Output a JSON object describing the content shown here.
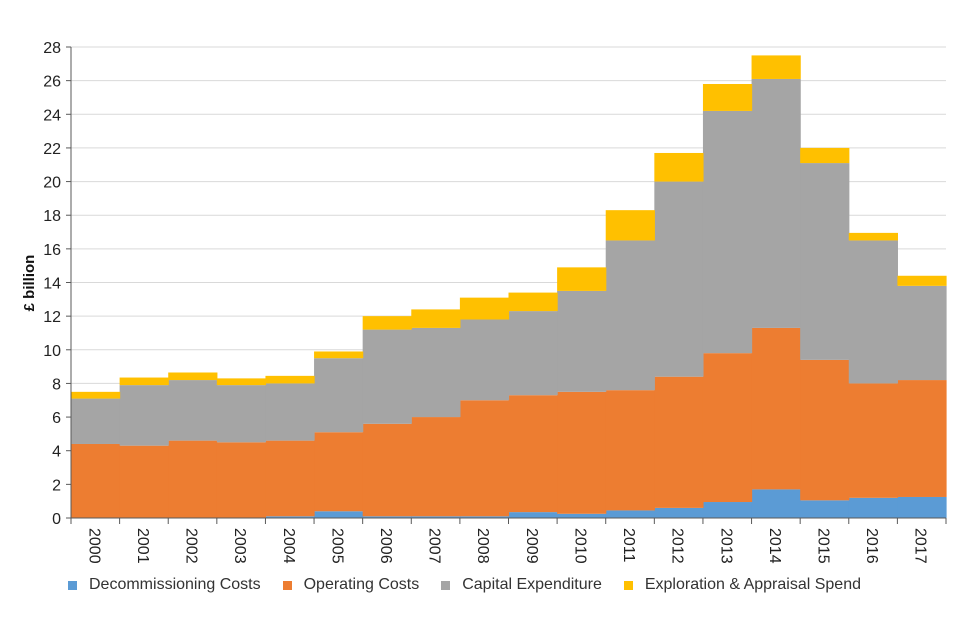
{
  "chart_data": {
    "type": "area",
    "stacked": true,
    "step": true,
    "title": "",
    "xlabel": "",
    "ylabel": "£ billion",
    "ylim": [
      0,
      28
    ],
    "yticks": [
      0,
      2,
      4,
      6,
      8,
      10,
      12,
      14,
      16,
      18,
      20,
      22,
      24,
      26,
      28
    ],
    "grid": true,
    "legend_position": "bottom",
    "categories": [
      "2000",
      "2001",
      "2002",
      "2003",
      "2004",
      "2005",
      "2006",
      "2007",
      "2008",
      "2009",
      "2010",
      "2011",
      "2012",
      "2013",
      "2014",
      "2015",
      "2016",
      "2017"
    ],
    "series": [
      {
        "name": "Decommissioning Costs",
        "color": "#5b9bd5",
        "values": [
          0.0,
          0.0,
          0.0,
          0.0,
          0.1,
          0.4,
          0.1,
          0.1,
          0.1,
          0.35,
          0.25,
          0.45,
          0.6,
          0.95,
          1.7,
          1.05,
          1.2,
          1.25
        ]
      },
      {
        "name": "Operating Costs",
        "color": "#ed7d31",
        "values": [
          4.4,
          4.3,
          4.6,
          4.5,
          4.5,
          4.7,
          5.5,
          5.9,
          6.9,
          6.95,
          7.25,
          7.15,
          7.8,
          8.85,
          9.6,
          8.35,
          6.8,
          6.95
        ]
      },
      {
        "name": "Capital Expenditure",
        "color": "#a5a5a5",
        "values": [
          2.7,
          3.6,
          3.6,
          3.4,
          3.4,
          4.4,
          5.6,
          5.3,
          4.8,
          5.0,
          6.0,
          8.9,
          11.6,
          14.4,
          14.8,
          11.7,
          8.5,
          5.6
        ]
      },
      {
        "name": "Exploration & Appraisal Spend",
        "color": "#ffc000",
        "values": [
          0.4,
          0.45,
          0.45,
          0.4,
          0.45,
          0.4,
          0.8,
          1.1,
          1.3,
          1.1,
          1.4,
          1.8,
          1.7,
          1.6,
          1.4,
          0.9,
          0.45,
          0.6
        ]
      }
    ]
  }
}
